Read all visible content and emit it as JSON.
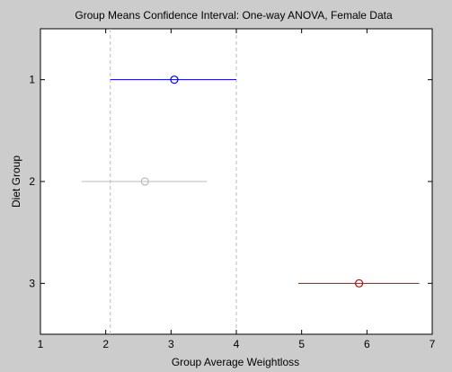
{
  "chart_data": {
    "type": "scatter",
    "title": "Group Means Confidence Interval: One-way ANOVA, Female Data",
    "xlabel": "Group Average Weightloss",
    "ylabel": "Diet Group",
    "xlim": [
      1,
      7
    ],
    "ylim": [
      0.5,
      3.5
    ],
    "x_ticks": [
      1,
      2,
      3,
      4,
      5,
      6,
      7
    ],
    "y_ticks": [
      1,
      2,
      3
    ],
    "grid": false,
    "reference_lines": [
      2.07,
      4.0
    ],
    "series": [
      {
        "group": 1,
        "mean": 3.05,
        "low": 2.07,
        "high": 4.0,
        "color": "#0000cc"
      },
      {
        "group": 2,
        "mean": 2.6,
        "low": 1.63,
        "high": 3.55,
        "color": "#bbbbbb"
      },
      {
        "group": 3,
        "mean": 5.88,
        "low": 4.95,
        "high": 6.8,
        "color": "#cc0000"
      }
    ]
  }
}
